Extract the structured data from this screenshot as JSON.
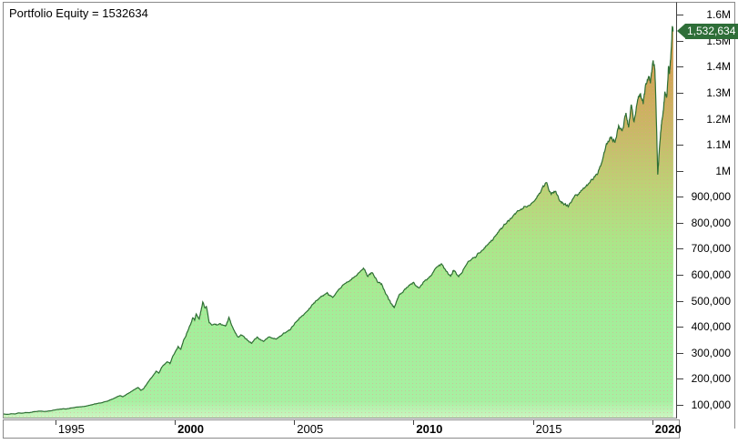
{
  "window": {
    "background": "#ffffff",
    "frame_color": "#8a8a8a"
  },
  "chart_data": {
    "type": "area",
    "title": "Portfolio Equity = 1532634",
    "series_name": "Portfolio Equity",
    "last_value": 1532634,
    "last_value_label": "1,532,634",
    "x_axis": {
      "lim": [
        1992.83,
        2021.0
      ],
      "ticks": [
        {
          "t": 1995,
          "label": "1995",
          "bold": false
        },
        {
          "t": 2000,
          "label": "2000",
          "bold": true
        },
        {
          "t": 2005,
          "label": "2005",
          "bold": false
        },
        {
          "t": 2010,
          "label": "2010",
          "bold": true
        },
        {
          "t": 2015,
          "label": "2015",
          "bold": false
        },
        {
          "t": 2020,
          "label": "2020",
          "bold": true
        }
      ]
    },
    "y_axis": {
      "lim": [
        47000,
        1643000
      ],
      "ticks": [
        {
          "v": 100000,
          "label": "100,000"
        },
        {
          "v": 200000,
          "label": "200,000"
        },
        {
          "v": 300000,
          "label": "300,000"
        },
        {
          "v": 400000,
          "label": "400,000"
        },
        {
          "v": 500000,
          "label": "500,000"
        },
        {
          "v": 600000,
          "label": "600,000"
        },
        {
          "v": 700000,
          "label": "700,000"
        },
        {
          "v": 800000,
          "label": "800,000"
        },
        {
          "v": 900000,
          "label": "900,000"
        },
        {
          "v": 1000000,
          "label": "1M"
        },
        {
          "v": 1100000,
          "label": "1.1M"
        },
        {
          "v": 1200000,
          "label": "1.2M"
        },
        {
          "v": 1300000,
          "label": "1.3M"
        },
        {
          "v": 1400000,
          "label": "1.4M"
        },
        {
          "v": 1500000,
          "label": "1.5M"
        },
        {
          "v": 1600000,
          "label": "1.6M"
        }
      ]
    },
    "style": {
      "line_color": "#2e6f34",
      "flag_bg": "#2e6e38",
      "flag_text": "#ffffff",
      "dither_dot_color": "#f09090",
      "fill_gradient": [
        [
          0.0,
          "#d39a4f"
        ],
        [
          0.15,
          "#d1a354"
        ],
        [
          0.3,
          "#cab766"
        ],
        [
          0.45,
          "#bcd377"
        ],
        [
          0.58,
          "#abe689"
        ],
        [
          0.75,
          "#a3ee99"
        ],
        [
          0.96,
          "#a7f0a2"
        ],
        [
          1.0,
          "#ccf6c2"
        ]
      ]
    },
    "points": [
      [
        1992.83,
        61000
      ],
      [
        1993.0,
        59500
      ],
      [
        1993.14,
        62000
      ],
      [
        1993.3,
        61000
      ],
      [
        1993.44,
        65000
      ],
      [
        1993.6,
        64000
      ],
      [
        1993.74,
        66500
      ],
      [
        1993.9,
        66000
      ],
      [
        1994.05,
        69000
      ],
      [
        1994.2,
        70500
      ],
      [
        1994.39,
        72000
      ],
      [
        1994.52,
        70500
      ],
      [
        1994.66,
        71500
      ],
      [
        1994.85,
        74000
      ],
      [
        1995.0,
        77000
      ],
      [
        1995.18,
        79500
      ],
      [
        1995.34,
        81500
      ],
      [
        1995.45,
        80000
      ],
      [
        1995.57,
        82500
      ],
      [
        1995.74,
        85000
      ],
      [
        1995.91,
        87500
      ],
      [
        1996.1,
        89000
      ],
      [
        1996.29,
        91500
      ],
      [
        1996.45,
        95000
      ],
      [
        1996.56,
        97500
      ],
      [
        1996.7,
        100000
      ],
      [
        1996.86,
        103000
      ],
      [
        1997.0,
        106000
      ],
      [
        1997.17,
        110000
      ],
      [
        1997.32,
        116000
      ],
      [
        1997.47,
        122000
      ],
      [
        1997.6,
        128000
      ],
      [
        1997.7,
        131500
      ],
      [
        1997.82,
        127000
      ],
      [
        1997.93,
        133000
      ],
      [
        1998.05,
        140000
      ],
      [
        1998.19,
        148000
      ],
      [
        1998.33,
        156000
      ],
      [
        1998.46,
        163000
      ],
      [
        1998.58,
        152000
      ],
      [
        1998.69,
        158000
      ],
      [
        1998.82,
        175000
      ],
      [
        1998.95,
        193000
      ],
      [
        1999.1,
        210000
      ],
      [
        1999.22,
        226000
      ],
      [
        1999.33,
        218000
      ],
      [
        1999.45,
        241000
      ],
      [
        1999.57,
        252000
      ],
      [
        1999.68,
        262000
      ],
      [
        1999.8,
        255000
      ],
      [
        1999.91,
        282000
      ],
      [
        2000.02,
        300000
      ],
      [
        2000.14,
        321000
      ],
      [
        2000.25,
        310000
      ],
      [
        2000.37,
        346000
      ],
      [
        2000.47,
        362000
      ],
      [
        2000.56,
        384000
      ],
      [
        2000.66,
        405000
      ],
      [
        2000.75,
        431000
      ],
      [
        2000.83,
        422000
      ],
      [
        2000.9,
        446000
      ],
      [
        2001.02,
        426000
      ],
      [
        2001.1,
        460000
      ],
      [
        2001.17,
        492000
      ],
      [
        2001.25,
        470000
      ],
      [
        2001.32,
        476000
      ],
      [
        2001.44,
        412000
      ],
      [
        2001.55,
        403000
      ],
      [
        2001.67,
        407000
      ],
      [
        2001.78,
        403500
      ],
      [
        2001.89,
        409000
      ],
      [
        2002.0,
        404000
      ],
      [
        2002.12,
        399000
      ],
      [
        2002.2,
        415000
      ],
      [
        2002.27,
        433000
      ],
      [
        2002.37,
        405000
      ],
      [
        2002.46,
        386000
      ],
      [
        2002.56,
        370000
      ],
      [
        2002.65,
        357000
      ],
      [
        2002.75,
        364000
      ],
      [
        2002.84,
        362500
      ],
      [
        2002.94,
        352000
      ],
      [
        2003.03,
        346000
      ],
      [
        2003.12,
        338000
      ],
      [
        2003.22,
        333000
      ],
      [
        2003.33,
        347000
      ],
      [
        2003.45,
        357000
      ],
      [
        2003.58,
        348000
      ],
      [
        2003.71,
        340000
      ],
      [
        2003.85,
        350000
      ],
      [
        2003.98,
        357000
      ],
      [
        2004.1,
        352500
      ],
      [
        2004.25,
        349000
      ],
      [
        2004.4,
        360000
      ],
      [
        2004.55,
        372000
      ],
      [
        2004.7,
        378000
      ],
      [
        2004.85,
        386000
      ],
      [
        2005.0,
        405000
      ],
      [
        2005.12,
        418000
      ],
      [
        2005.23,
        431000
      ],
      [
        2005.35,
        440000
      ],
      [
        2005.46,
        449000
      ],
      [
        2005.58,
        459000
      ],
      [
        2005.69,
        471000
      ],
      [
        2005.8,
        484000
      ],
      [
        2005.92,
        497000
      ],
      [
        2006.03,
        505000
      ],
      [
        2006.15,
        513000
      ],
      [
        2006.27,
        520000
      ],
      [
        2006.38,
        528000
      ],
      [
        2006.5,
        516000
      ],
      [
        2006.61,
        509500
      ],
      [
        2006.74,
        524000
      ],
      [
        2006.87,
        541000
      ],
      [
        2007.0,
        552000
      ],
      [
        2007.13,
        563000
      ],
      [
        2007.27,
        570000
      ],
      [
        2007.4,
        578000
      ],
      [
        2007.53,
        589000
      ],
      [
        2007.67,
        601000
      ],
      [
        2007.78,
        611000
      ],
      [
        2007.9,
        622000
      ],
      [
        2008.0,
        605000
      ],
      [
        2008.09,
        590000
      ],
      [
        2008.19,
        598000
      ],
      [
        2008.28,
        604000
      ],
      [
        2008.38,
        586000
      ],
      [
        2008.47,
        573000
      ],
      [
        2008.57,
        567000
      ],
      [
        2008.66,
        562000
      ],
      [
        2008.76,
        540000
      ],
      [
        2008.85,
        521000
      ],
      [
        2008.95,
        503000
      ],
      [
        2009.04,
        488000
      ],
      [
        2009.12,
        478000
      ],
      [
        2009.19,
        470000
      ],
      [
        2009.28,
        492000
      ],
      [
        2009.38,
        516000
      ],
      [
        2009.5,
        527000
      ],
      [
        2009.61,
        538000
      ],
      [
        2009.73,
        548000
      ],
      [
        2009.84,
        557000
      ],
      [
        2009.94,
        561000
      ],
      [
        2010.03,
        564000
      ],
      [
        2010.13,
        553000
      ],
      [
        2010.22,
        546000
      ],
      [
        2010.34,
        558000
      ],
      [
        2010.45,
        571000
      ],
      [
        2010.58,
        580000
      ],
      [
        2010.71,
        591000
      ],
      [
        2010.83,
        607000
      ],
      [
        2010.94,
        623000
      ],
      [
        2011.05,
        632000
      ],
      [
        2011.17,
        639000
      ],
      [
        2011.27,
        622000
      ],
      [
        2011.36,
        611000
      ],
      [
        2011.46,
        598000
      ],
      [
        2011.55,
        591000
      ],
      [
        2011.63,
        604000
      ],
      [
        2011.7,
        613000
      ],
      [
        2011.8,
        598000
      ],
      [
        2011.89,
        589000
      ],
      [
        2011.99,
        601000
      ],
      [
        2012.08,
        616000
      ],
      [
        2012.2,
        633000
      ],
      [
        2012.31,
        649000
      ],
      [
        2012.43,
        656000
      ],
      [
        2012.54,
        663000
      ],
      [
        2012.65,
        671000
      ],
      [
        2012.77,
        681000
      ],
      [
        2012.88,
        691000
      ],
      [
        2013.0,
        701000
      ],
      [
        2013.13,
        714000
      ],
      [
        2013.26,
        729000
      ],
      [
        2013.4,
        744000
      ],
      [
        2013.53,
        759000
      ],
      [
        2013.66,
        775000
      ],
      [
        2013.8,
        791000
      ],
      [
        2013.93,
        802000
      ],
      [
        2014.06,
        813000
      ],
      [
        2014.2,
        826000
      ],
      [
        2014.33,
        839000
      ],
      [
        2014.46,
        845000
      ],
      [
        2014.59,
        851000
      ],
      [
        2014.73,
        857000
      ],
      [
        2014.86,
        863000
      ],
      [
        2015.0,
        876000
      ],
      [
        2015.13,
        889000
      ],
      [
        2015.24,
        905000
      ],
      [
        2015.35,
        921000
      ],
      [
        2015.46,
        936000
      ],
      [
        2015.58,
        951000
      ],
      [
        2015.67,
        922000
      ],
      [
        2015.77,
        906000
      ],
      [
        2015.86,
        911000
      ],
      [
        2015.96,
        917000
      ],
      [
        2016.06,
        898000
      ],
      [
        2016.15,
        879000
      ],
      [
        2016.25,
        873000
      ],
      [
        2016.34,
        869000
      ],
      [
        2016.42,
        864000
      ],
      [
        2016.5,
        861000
      ],
      [
        2016.62,
        878000
      ],
      [
        2016.73,
        896000
      ],
      [
        2016.84,
        904000
      ],
      [
        2016.95,
        913000
      ],
      [
        2017.08,
        924000
      ],
      [
        2017.22,
        936000
      ],
      [
        2017.35,
        949000
      ],
      [
        2017.49,
        963000
      ],
      [
        2017.6,
        974000
      ],
      [
        2017.72,
        986000
      ],
      [
        2017.84,
        1015000
      ],
      [
        2017.95,
        1052000
      ],
      [
        2018.02,
        1075000
      ],
      [
        2018.1,
        1099000
      ],
      [
        2018.2,
        1112000
      ],
      [
        2018.29,
        1126000
      ],
      [
        2018.37,
        1115000
      ],
      [
        2018.44,
        1106000
      ],
      [
        2018.52,
        1138000
      ],
      [
        2018.59,
        1171000
      ],
      [
        2018.67,
        1160000
      ],
      [
        2018.74,
        1151000
      ],
      [
        2018.82,
        1185000
      ],
      [
        2018.9,
        1219000
      ],
      [
        2018.96,
        1190000
      ],
      [
        2019.01,
        1163000
      ],
      [
        2019.07,
        1207000
      ],
      [
        2019.12,
        1251000
      ],
      [
        2019.18,
        1218000
      ],
      [
        2019.24,
        1186000
      ],
      [
        2019.32,
        1228000
      ],
      [
        2019.39,
        1271000
      ],
      [
        2019.45,
        1282000
      ],
      [
        2019.51,
        1293000
      ],
      [
        2019.57,
        1272000
      ],
      [
        2019.62,
        1253000
      ],
      [
        2019.68,
        1292000
      ],
      [
        2019.73,
        1331000
      ],
      [
        2019.79,
        1346000
      ],
      [
        2019.85,
        1361000
      ],
      [
        2019.89,
        1347000
      ],
      [
        2019.92,
        1333000
      ],
      [
        2019.98,
        1377000
      ],
      [
        2020.04,
        1421000
      ],
      [
        2020.08,
        1400000
      ],
      [
        2020.11,
        1381000
      ],
      [
        2020.15,
        1272000
      ],
      [
        2020.19,
        1127000
      ],
      [
        2020.23,
        982000
      ],
      [
        2020.27,
        1031000
      ],
      [
        2020.3,
        1081000
      ],
      [
        2020.34,
        1127000
      ],
      [
        2020.38,
        1173000
      ],
      [
        2020.42,
        1199000
      ],
      [
        2020.46,
        1226000
      ],
      [
        2020.5,
        1263000
      ],
      [
        2020.53,
        1301000
      ],
      [
        2020.57,
        1292000
      ],
      [
        2020.61,
        1283000
      ],
      [
        2020.65,
        1341000
      ],
      [
        2020.68,
        1399000
      ],
      [
        2020.7,
        1384000
      ],
      [
        2020.72,
        1369000
      ],
      [
        2020.76,
        1420000
      ],
      [
        2020.8,
        1471000
      ],
      [
        2020.84,
        1553000
      ],
      [
        2020.88,
        1532634
      ]
    ]
  }
}
